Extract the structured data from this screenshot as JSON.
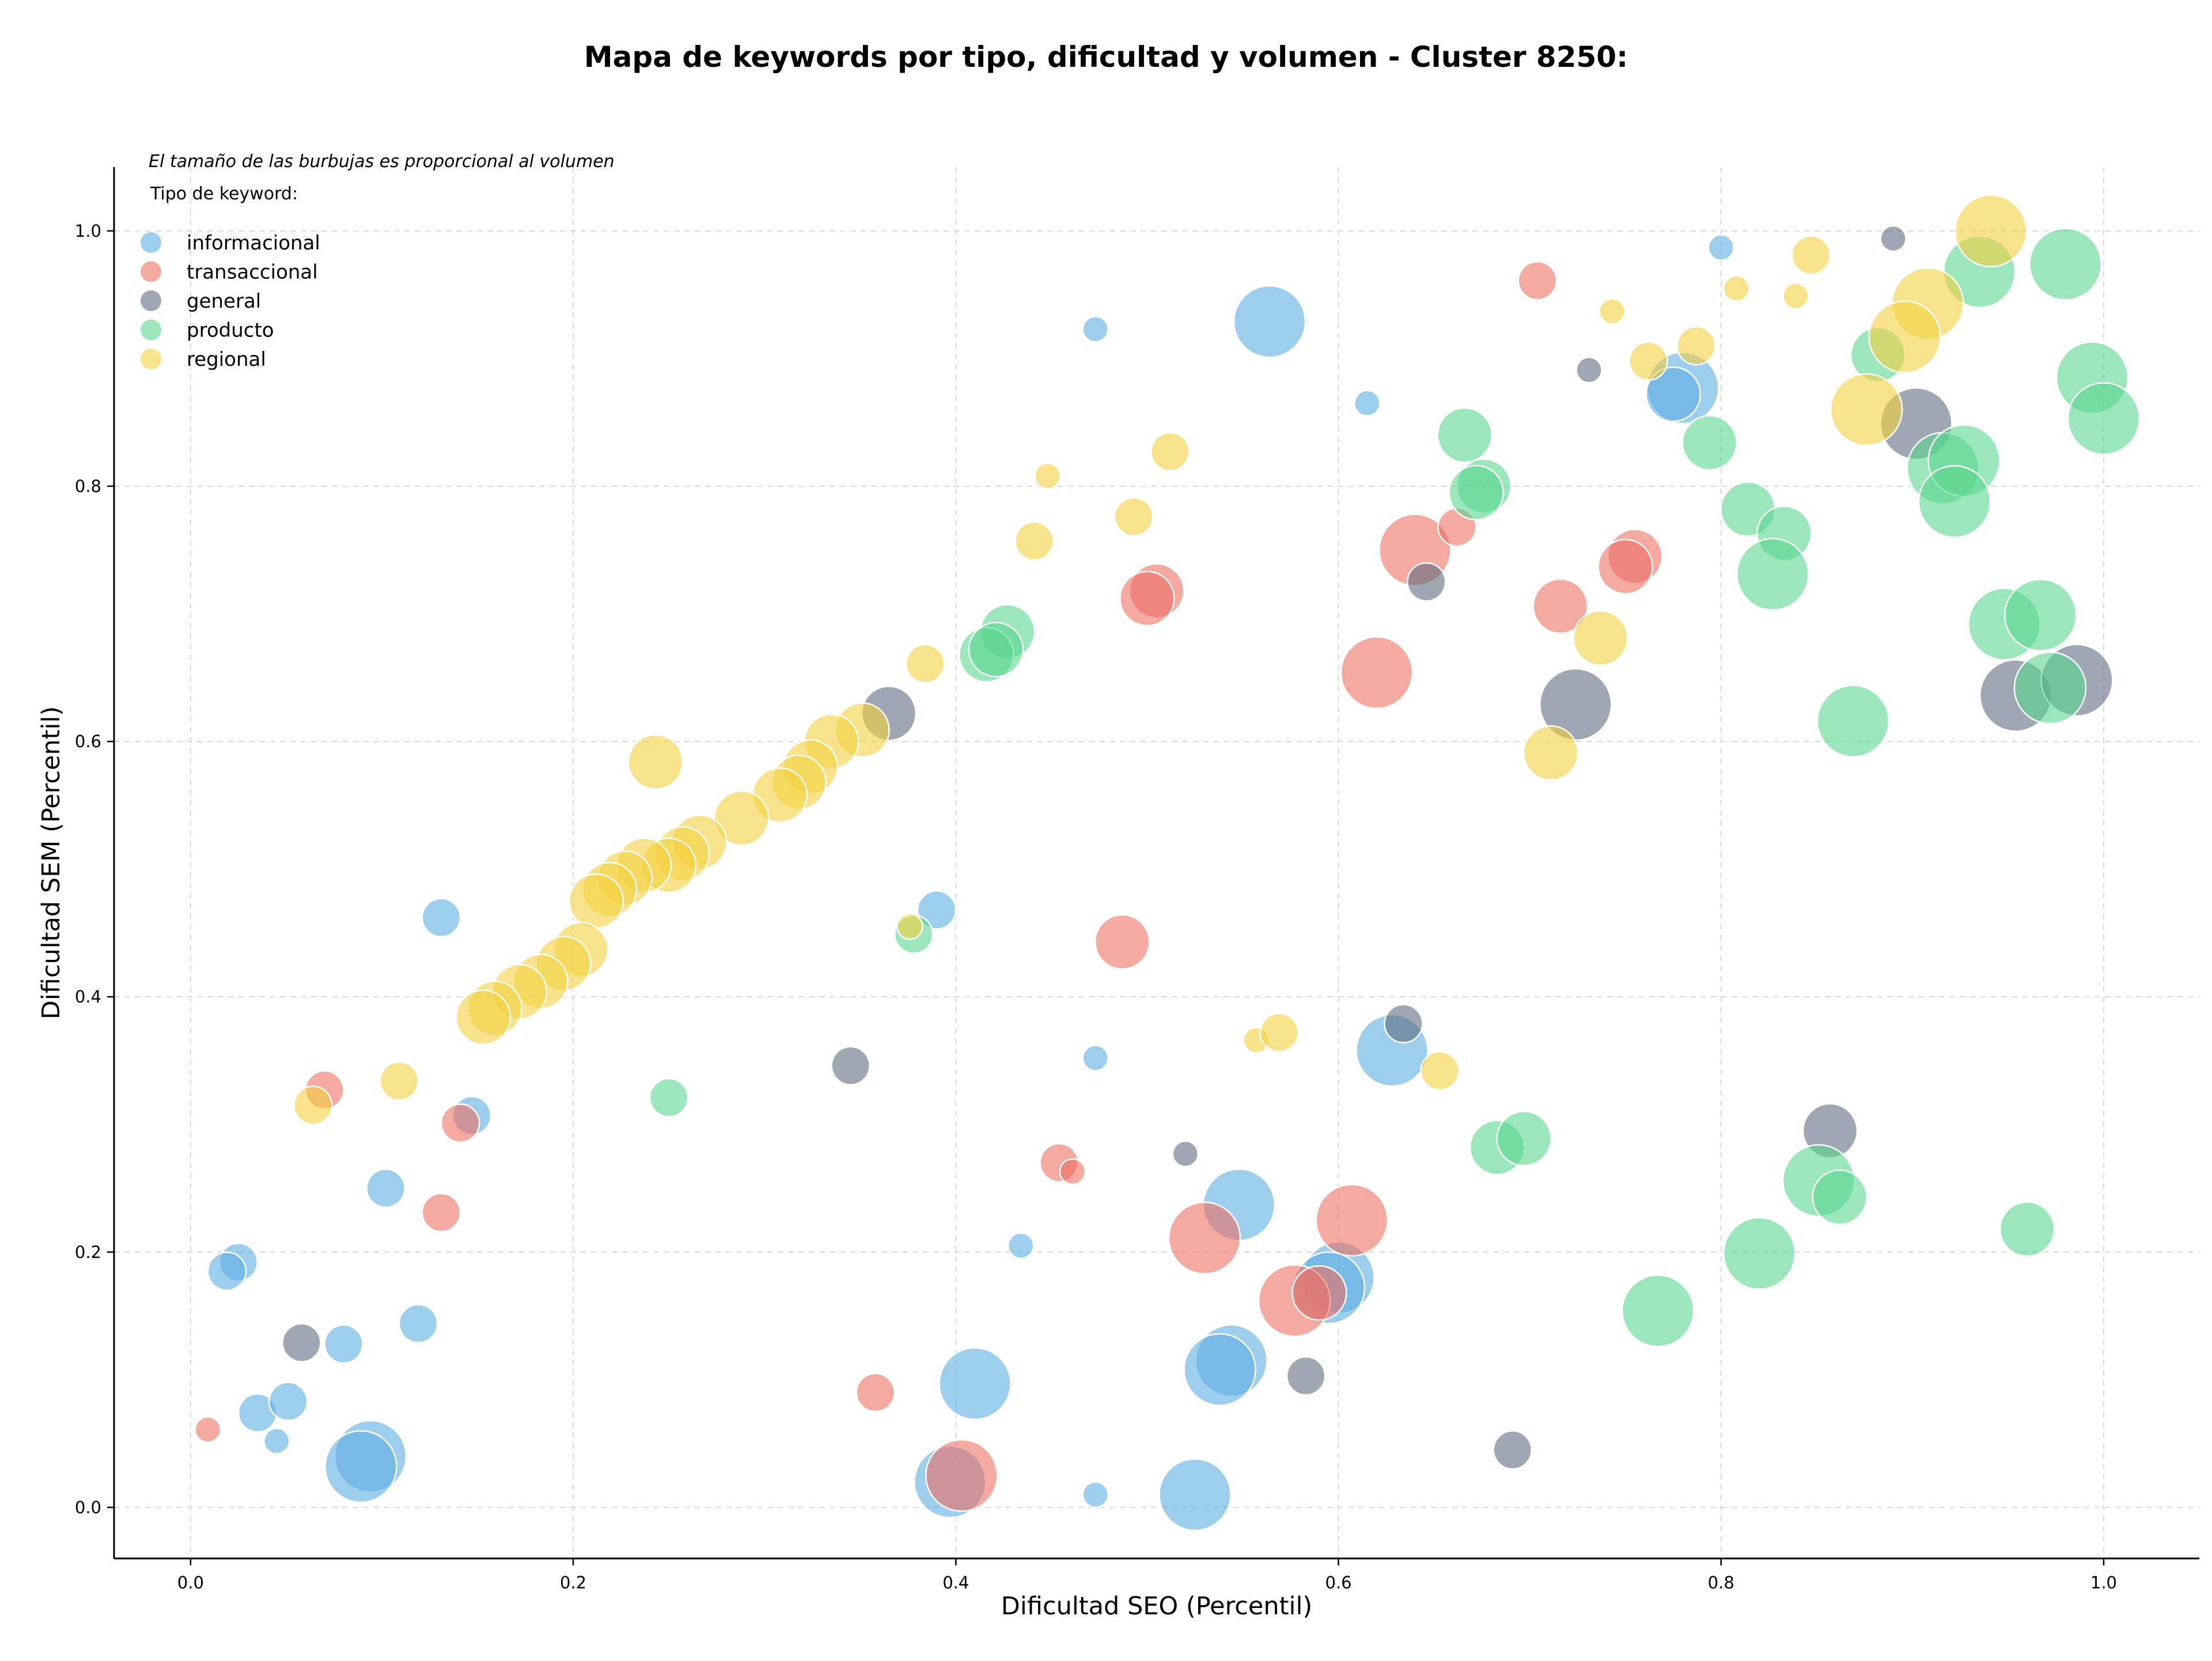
{
  "chart_data": {
    "type": "scatter",
    "title": "Mapa de keywords por tipo, dificultad y volumen - Cluster 8250:",
    "xlabel": "Dificultad SEO (Percentil)",
    "ylabel": "Dificultad SEM (Percentil)",
    "xlim": [
      -0.04,
      1.05
    ],
    "ylim": [
      -0.04,
      1.05
    ],
    "xticks": [
      "0.0",
      "0.2",
      "0.4",
      "0.6",
      "0.8",
      "1.0"
    ],
    "yticks": [
      "0.0",
      "0.2",
      "0.4",
      "0.6",
      "0.8",
      "1.0"
    ],
    "grid": true,
    "note": "El tamaño de las burbujas es proporcional al volumen",
    "legend": {
      "title": "Tipo de keyword:",
      "position": "top-left"
    },
    "bubble_size": "volume",
    "series": [
      {
        "name": "informacional",
        "color": "#5DADE2",
        "points": [
          [
            0.473,
            0.923,
            1
          ],
          [
            0.564,
            0.929,
            4
          ],
          [
            0.615,
            0.865,
            1
          ],
          [
            0.8,
            0.987,
            1
          ],
          [
            0.78,
            0.877,
            4
          ],
          [
            0.775,
            0.872,
            3
          ],
          [
            0.131,
            0.462,
            2
          ],
          [
            0.39,
            0.468,
            2
          ],
          [
            0.147,
            0.307,
            2
          ],
          [
            0.102,
            0.25,
            2
          ],
          [
            0.473,
            0.352,
            1
          ],
          [
            0.628,
            0.358,
            4
          ],
          [
            0.548,
            0.237,
            4
          ],
          [
            0.434,
            0.205,
            1
          ],
          [
            0.025,
            0.192,
            2
          ],
          [
            0.019,
            0.185,
            2
          ],
          [
            0.08,
            0.128,
            2
          ],
          [
            0.119,
            0.144,
            2
          ],
          [
            0.035,
            0.074,
            2
          ],
          [
            0.051,
            0.083,
            2
          ],
          [
            0.045,
            0.052,
            1
          ],
          [
            0.094,
            0.04,
            4
          ],
          [
            0.089,
            0.032,
            4
          ],
          [
            0.41,
            0.097,
            4
          ],
          [
            0.397,
            0.02,
            4
          ],
          [
            0.473,
            0.01,
            1
          ],
          [
            0.525,
            0.01,
            4
          ],
          [
            0.6,
            0.18,
            4
          ],
          [
            0.595,
            0.172,
            4
          ],
          [
            0.544,
            0.115,
            4
          ],
          [
            0.538,
            0.108,
            4
          ]
        ]
      },
      {
        "name": "transaccional",
        "color": "#EC7063",
        "points": [
          [
            0.704,
            0.961,
            2
          ],
          [
            0.64,
            0.75,
            4
          ],
          [
            0.662,
            0.768,
            2
          ],
          [
            0.716,
            0.706,
            3
          ],
          [
            0.755,
            0.745,
            3
          ],
          [
            0.75,
            0.737,
            3
          ],
          [
            0.505,
            0.718,
            3
          ],
          [
            0.5,
            0.712,
            3
          ],
          [
            0.62,
            0.654,
            4
          ],
          [
            0.487,
            0.443,
            3
          ],
          [
            0.07,
            0.327,
            2
          ],
          [
            0.141,
            0.301,
            2
          ],
          [
            0.131,
            0.231,
            2
          ],
          [
            0.454,
            0.27,
            2
          ],
          [
            0.461,
            0.263,
            1
          ],
          [
            0.53,
            0.211,
            4
          ],
          [
            0.607,
            0.225,
            4
          ],
          [
            0.577,
            0.162,
            4
          ],
          [
            0.59,
            0.168,
            3
          ],
          [
            0.358,
            0.09,
            2
          ],
          [
            0.403,
            0.025,
            4
          ],
          [
            0.009,
            0.061,
            1
          ]
        ]
      },
      {
        "name": "general",
        "color": "#5D6D7E",
        "points": [
          [
            0.89,
            0.994,
            1
          ],
          [
            0.731,
            0.891,
            1
          ],
          [
            0.902,
            0.849,
            4
          ],
          [
            0.646,
            0.725,
            2
          ],
          [
            0.724,
            0.629,
            4
          ],
          [
            0.954,
            0.636,
            4
          ],
          [
            0.986,
            0.648,
            4
          ],
          [
            0.365,
            0.622,
            3
          ],
          [
            0.634,
            0.379,
            2
          ],
          [
            0.345,
            0.346,
            2
          ],
          [
            0.52,
            0.277,
            1
          ],
          [
            0.857,
            0.295,
            3
          ],
          [
            0.058,
            0.129,
            2
          ],
          [
            0.583,
            0.103,
            2
          ],
          [
            0.691,
            0.045,
            2
          ]
        ]
      },
      {
        "name": "producto",
        "color": "#58D68D",
        "points": [
          [
            0.935,
            0.968,
            4
          ],
          [
            0.98,
            0.974,
            4
          ],
          [
            0.994,
            0.885,
            4
          ],
          [
            1.0,
            0.853,
            4
          ],
          [
            0.882,
            0.903,
            3
          ],
          [
            0.916,
            0.814,
            4
          ],
          [
            0.927,
            0.82,
            4
          ],
          [
            0.922,
            0.788,
            4
          ],
          [
            0.794,
            0.834,
            3
          ],
          [
            0.666,
            0.84,
            3
          ],
          [
            0.676,
            0.8,
            3
          ],
          [
            0.672,
            0.795,
            3
          ],
          [
            0.814,
            0.782,
            3
          ],
          [
            0.833,
            0.763,
            3
          ],
          [
            0.827,
            0.731,
            4
          ],
          [
            0.948,
            0.692,
            4
          ],
          [
            0.967,
            0.699,
            4
          ],
          [
            0.972,
            0.642,
            4
          ],
          [
            0.869,
            0.616,
            4
          ],
          [
            0.427,
            0.686,
            3
          ],
          [
            0.416,
            0.668,
            3
          ],
          [
            0.421,
            0.672,
            3
          ],
          [
            0.378,
            0.449,
            2
          ],
          [
            0.25,
            0.321,
            2
          ],
          [
            0.683,
            0.282,
            3
          ],
          [
            0.697,
            0.289,
            3
          ],
          [
            0.851,
            0.256,
            4
          ],
          [
            0.862,
            0.243,
            3
          ],
          [
            0.82,
            0.199,
            4
          ],
          [
            0.767,
            0.154,
            4
          ],
          [
            0.96,
            0.218,
            3
          ]
        ]
      },
      {
        "name": "regional",
        "color": "#F4D03F",
        "points": [
          [
            0.941,
            1.0,
            4
          ],
          [
            0.847,
            0.981,
            2
          ],
          [
            0.743,
            0.937,
            1
          ],
          [
            0.808,
            0.955,
            1
          ],
          [
            0.839,
            0.949,
            1
          ],
          [
            0.787,
            0.91,
            2
          ],
          [
            0.762,
            0.898,
            2
          ],
          [
            0.908,
            0.943,
            4
          ],
          [
            0.896,
            0.917,
            4
          ],
          [
            0.876,
            0.86,
            4
          ],
          [
            0.512,
            0.827,
            2
          ],
          [
            0.448,
            0.808,
            1
          ],
          [
            0.441,
            0.757,
            2
          ],
          [
            0.493,
            0.776,
            2
          ],
          [
            0.737,
            0.681,
            3
          ],
          [
            0.711,
            0.591,
            3
          ],
          [
            0.384,
            0.661,
            2
          ],
          [
            0.243,
            0.584,
            3
          ],
          [
            0.351,
            0.609,
            3
          ],
          [
            0.335,
            0.6,
            3
          ],
          [
            0.324,
            0.58,
            3
          ],
          [
            0.318,
            0.568,
            3
          ],
          [
            0.308,
            0.558,
            3
          ],
          [
            0.288,
            0.54,
            3
          ],
          [
            0.266,
            0.521,
            3
          ],
          [
            0.257,
            0.512,
            3
          ],
          [
            0.25,
            0.503,
            3
          ],
          [
            0.237,
            0.503,
            3
          ],
          [
            0.227,
            0.493,
            3
          ],
          [
            0.219,
            0.484,
            3
          ],
          [
            0.212,
            0.475,
            3
          ],
          [
            0.204,
            0.437,
            3
          ],
          [
            0.195,
            0.426,
            3
          ],
          [
            0.183,
            0.412,
            3
          ],
          [
            0.172,
            0.404,
            3
          ],
          [
            0.159,
            0.391,
            3
          ],
          [
            0.153,
            0.384,
            3
          ],
          [
            0.109,
            0.334,
            2
          ],
          [
            0.064,
            0.315,
            2
          ],
          [
            0.376,
            0.455,
            1
          ],
          [
            0.557,
            0.366,
            1
          ],
          [
            0.569,
            0.372,
            2
          ],
          [
            0.653,
            0.342,
            2
          ]
        ]
      }
    ]
  }
}
